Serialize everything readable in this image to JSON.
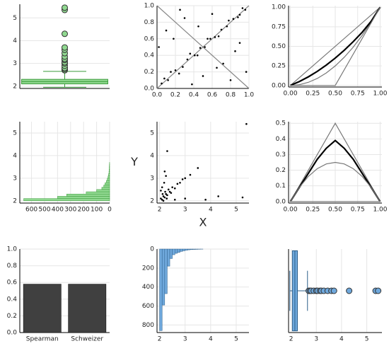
{
  "chart_data": [
    {
      "type": "box",
      "orientation": "vertical",
      "fill": "#90d890",
      "stroke": "#3a9a3a",
      "q1": 2.1,
      "median": 2.2,
      "q3": 2.3,
      "whisker_low": 1.95,
      "whisker_high": 2.65,
      "outliers": [
        2.7,
        2.75,
        2.8,
        2.9,
        3.0,
        3.05,
        3.15,
        3.2,
        3.3,
        3.45,
        3.6,
        3.7,
        4.3,
        5.35,
        5.45
      ],
      "ylim": [
        1.9,
        5.6
      ],
      "yticks": [
        2,
        3,
        4,
        5
      ],
      "grid": true
    },
    {
      "type": "scatter",
      "color": "#000000",
      "x": [
        0.05,
        0.12,
        0.2,
        0.28,
        0.33,
        0.41,
        0.47,
        0.52,
        0.58,
        0.63,
        0.7,
        0.76,
        0.83,
        0.9,
        0.96,
        0.08,
        0.15,
        0.24,
        0.36,
        0.44,
        0.55,
        0.67,
        0.78,
        0.88,
        0.93,
        0.02,
        0.1,
        0.3,
        0.5,
        0.6,
        0.72,
        0.85,
        0.97,
        0.18,
        0.38,
        0.65,
        0.8,
        0.25,
        0.45,
        0.9
      ],
      "y": [
        0.06,
        0.1,
        0.22,
        0.26,
        0.35,
        0.4,
        0.49,
        0.5,
        0.6,
        0.62,
        0.71,
        0.75,
        0.84,
        0.89,
        0.95,
        0.12,
        0.2,
        0.18,
        0.42,
        0.4,
        0.6,
        0.63,
        0.82,
        0.86,
        0.97,
        0.5,
        0.7,
        0.85,
        0.15,
        0.9,
        0.3,
        0.45,
        0.2,
        0.6,
        0.05,
        0.25,
        0.1,
        0.95,
        0.75,
        0.55
      ],
      "lines": [
        {
          "color": "#888888",
          "x": [
            0,
            1
          ],
          "values": [
            0,
            1
          ]
        },
        {
          "color": "#888888",
          "x": [
            0,
            1
          ],
          "values": [
            1,
            0
          ]
        }
      ],
      "xlim": [
        0,
        1
      ],
      "ylim": [
        0,
        1
      ],
      "xticks": [
        {
          "value": 0,
          "label": "0.0"
        },
        0.2,
        0.4,
        0.6,
        0.8,
        {
          "value": 1,
          "label": "1.0"
        }
      ],
      "yticks": [
        {
          "value": 0,
          "label": "0.0"
        },
        0.2,
        0.4,
        0.6,
        0.8,
        {
          "value": 1,
          "label": "1.0"
        }
      ],
      "grid": true
    },
    {
      "type": "line",
      "series": [
        {
          "color": "#777777",
          "width": 1.2,
          "x": [
            0,
            1
          ],
          "values": [
            0,
            1
          ]
        },
        {
          "color": "#777777",
          "width": 1.2,
          "x": [
            0,
            0.1,
            0.2,
            0.3,
            0.4,
            0.5,
            0.6,
            0.7,
            0.8,
            0.9,
            1
          ],
          "values": [
            0,
            0.01,
            0.04,
            0.09,
            0.16,
            0.25,
            0.36,
            0.49,
            0.64,
            0.81,
            1
          ]
        },
        {
          "color": "#000000",
          "width": 2.2,
          "x": [
            0,
            0.1,
            0.2,
            0.3,
            0.4,
            0.5,
            0.6,
            0.7,
            0.8,
            0.9,
            1
          ],
          "values": [
            0,
            0.05,
            0.11,
            0.18,
            0.26,
            0.35,
            0.45,
            0.56,
            0.68,
            0.82,
            1
          ]
        },
        {
          "color": "#777777",
          "width": 1.2,
          "x": [
            0,
            0.5,
            1
          ],
          "values": [
            0,
            0,
            1
          ]
        }
      ],
      "xlim": [
        -0.02,
        1.02
      ],
      "ylim": [
        -0.02,
        1.02
      ],
      "xticks": [
        {
          "value": 0,
          "label": "0.00"
        },
        {
          "value": 0.25,
          "label": "0.25"
        },
        {
          "value": 0.5,
          "label": "0.50"
        },
        {
          "value": 0.75,
          "label": "0.75"
        },
        {
          "value": 1,
          "label": "1.00"
        }
      ],
      "yticks": [
        {
          "value": 0,
          "label": "0.00"
        },
        {
          "value": 0.25,
          "label": "0.25"
        },
        {
          "value": 0.5,
          "label": "0.50"
        },
        {
          "value": 0.75,
          "label": "0.75"
        },
        {
          "value": 1,
          "label": "1.00"
        }
      ],
      "grid": true
    },
    {
      "type": "hist",
      "orientation": "horizontal",
      "fill": "#90d890",
      "stroke": "#3a9a3a",
      "bins": [
        2.0,
        2.1,
        2.2,
        2.3,
        2.4,
        2.5,
        2.6,
        2.7,
        2.8,
        2.9,
        3.0,
        3.1,
        3.2,
        3.3,
        3.4,
        3.5,
        3.6,
        3.7
      ],
      "counts": [
        660,
        400,
        330,
        180,
        100,
        60,
        45,
        35,
        25,
        18,
        12,
        8,
        5,
        4,
        3,
        2,
        1
      ],
      "xlim": [
        690,
        0
      ],
      "ylim": [
        1.9,
        5.5
      ],
      "xticks": [
        600,
        500,
        400,
        300,
        200,
        100,
        0
      ],
      "yticks": [
        2,
        3,
        4,
        5
      ],
      "grid": true
    },
    {
      "type": "scatter",
      "color": "#000000",
      "xlabel": "X",
      "ylabel": "Y",
      "x": [
        2.05,
        2.1,
        2.12,
        2.15,
        2.2,
        2.22,
        2.25,
        2.3,
        2.35,
        2.4,
        2.1,
        2.18,
        2.28,
        2.05,
        2.45,
        2.5,
        2.6,
        2.7,
        2.8,
        2.9,
        3.0,
        3.2,
        3.5,
        2.3,
        2.2,
        2.15,
        3.0,
        3.8,
        4.3,
        5.25,
        5.4,
        2.6,
        2.25
      ],
      "y": [
        2.1,
        2.05,
        2.3,
        2.2,
        2.15,
        2.4,
        2.3,
        2.25,
        2.5,
        2.4,
        2.6,
        2.8,
        2.1,
        2.45,
        2.35,
        2.6,
        2.55,
        2.75,
        2.8,
        2.95,
        3.0,
        3.15,
        3.45,
        4.2,
        3.3,
        2.0,
        2.1,
        2.05,
        2.2,
        2.15,
        5.4,
        2.05,
        3.1
      ],
      "xlim": [
        1.9,
        5.5
      ],
      "ylim": [
        1.9,
        5.5
      ],
      "xticks": [
        2,
        3,
        4,
        5
      ],
      "yticks": [
        2,
        3,
        4,
        5
      ],
      "grid": true
    },
    {
      "type": "line",
      "series": [
        {
          "color": "#777777",
          "width": 1.2,
          "x": [
            0,
            0.5,
            1
          ],
          "values": [
            0,
            0.5,
            0
          ]
        },
        {
          "color": "#000000",
          "width": 2.2,
          "x": [
            0,
            0.1,
            0.2,
            0.3,
            0.4,
            0.5,
            0.6,
            0.7,
            0.8,
            0.9,
            1
          ],
          "values": [
            0,
            0.09,
            0.18,
            0.27,
            0.34,
            0.39,
            0.34,
            0.27,
            0.18,
            0.09,
            0
          ]
        },
        {
          "color": "#777777",
          "width": 1.2,
          "x": [
            0,
            0.1,
            0.2,
            0.3,
            0.4,
            0.5,
            0.6,
            0.7,
            0.8,
            0.9,
            1
          ],
          "values": [
            0,
            0.09,
            0.16,
            0.21,
            0.24,
            0.25,
            0.24,
            0.21,
            0.16,
            0.09,
            0
          ]
        },
        {
          "color": "#777777",
          "width": 1.2,
          "x": [
            0,
            1
          ],
          "values": [
            0,
            0
          ]
        }
      ],
      "xlim": [
        -0.02,
        1.02
      ],
      "ylim": [
        -0.01,
        0.51
      ],
      "xticks": [
        {
          "value": 0,
          "label": "0.00"
        },
        {
          "value": 0.25,
          "label": "0.25"
        },
        {
          "value": 0.5,
          "label": "0.50"
        },
        {
          "value": 0.75,
          "label": "0.75"
        },
        {
          "value": 1,
          "label": "1.00"
        }
      ],
      "yticks": [
        {
          "value": 0,
          "label": "0.0"
        },
        0.1,
        0.2,
        0.3,
        0.4,
        0.5
      ],
      "grid": true
    },
    {
      "type": "bar",
      "color": "#404040",
      "categories": [
        "Spearman",
        "Schweizer"
      ],
      "values": [
        0.58,
        0.58
      ],
      "ylim": [
        0,
        1
      ],
      "yticks": [
        {
          "value": 0,
          "label": "0.0"
        },
        0.2,
        0.4,
        0.6,
        0.8,
        {
          "value": 1,
          "label": "1.0"
        }
      ],
      "grid": true
    },
    {
      "type": "hist",
      "orientation": "vertical",
      "fill": "#6fa8dc",
      "stroke": "#2c5f8a",
      "bins": [
        2.0,
        2.1,
        2.2,
        2.3,
        2.4,
        2.5,
        2.6,
        2.7,
        2.8,
        2.9,
        3.0,
        3.1,
        3.2,
        3.3,
        3.4,
        3.5,
        3.6,
        3.7
      ],
      "counts": [
        860,
        590,
        470,
        180,
        100,
        60,
        45,
        35,
        25,
        18,
        12,
        8,
        5,
        4,
        3,
        2,
        1
      ],
      "xlim": [
        1.9,
        5.5
      ],
      "ylim": [
        880,
        0
      ],
      "xticks": [
        2,
        3,
        4,
        5
      ],
      "yticks": [
        0,
        200,
        400,
        600,
        800
      ],
      "grid": true
    },
    {
      "type": "box",
      "orientation": "horizontal",
      "fill": "#6fa8dc",
      "stroke": "#2c5f8a",
      "q1": 2.05,
      "median": 2.15,
      "q3": 2.25,
      "whisker_low": 1.95,
      "whisker_high": 2.65,
      "outliers": [
        2.7,
        2.75,
        2.8,
        2.9,
        3.0,
        3.05,
        3.15,
        3.2,
        3.3,
        3.45,
        3.6,
        3.7,
        4.3,
        5.35,
        5.45
      ],
      "xlim": [
        1.9,
        5.6
      ],
      "xticks": [
        2,
        3,
        4,
        5
      ],
      "grid": true
    }
  ]
}
